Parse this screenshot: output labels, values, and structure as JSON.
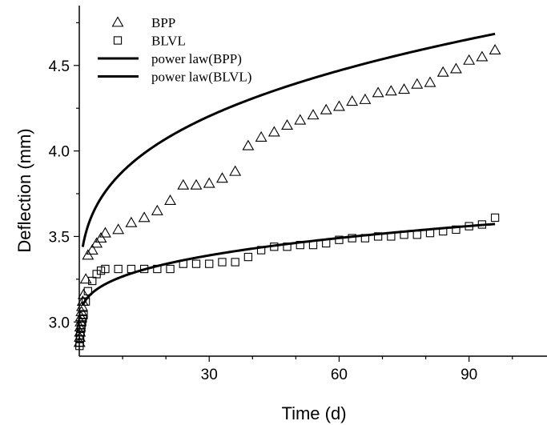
{
  "chart_data": {
    "type": "scatter",
    "title": "",
    "xlabel": "Time (d)",
    "ylabel": "Deflection (mm)",
    "xlim": [
      0,
      108
    ],
    "ylim": [
      2.8,
      4.85
    ],
    "xticks": [
      30,
      60,
      90
    ],
    "yticks": [
      3.0,
      3.5,
      4.0,
      4.5
    ],
    "x_tick_labels": [
      "30",
      "60",
      "90"
    ],
    "y_tick_labels": [
      "3.0",
      "3.5",
      "4.0",
      "4.5"
    ],
    "grid": false,
    "legend_position": "top-left",
    "series": [
      {
        "name": "BPP",
        "marker": "triangle",
        "points": [
          [
            0.05,
            2.88
          ],
          [
            0.1,
            2.91
          ],
          [
            0.15,
            2.94
          ],
          [
            0.2,
            2.97
          ],
          [
            0.3,
            3.0
          ],
          [
            0.4,
            3.03
          ],
          [
            0.5,
            3.06
          ],
          [
            0.65,
            3.09
          ],
          [
            0.8,
            3.12
          ],
          [
            1.0,
            3.16
          ],
          [
            1.5,
            3.25
          ],
          [
            2.0,
            3.39
          ],
          [
            3.0,
            3.42
          ],
          [
            4.0,
            3.46
          ],
          [
            5.0,
            3.49
          ],
          [
            6.0,
            3.52
          ],
          [
            9,
            3.54
          ],
          [
            12,
            3.58
          ],
          [
            15,
            3.61
          ],
          [
            18,
            3.65
          ],
          [
            21,
            3.71
          ],
          [
            24,
            3.8
          ],
          [
            27,
            3.8
          ],
          [
            30,
            3.81
          ],
          [
            33,
            3.84
          ],
          [
            36,
            3.88
          ],
          [
            39,
            4.03
          ],
          [
            42,
            4.08
          ],
          [
            45,
            4.11
          ],
          [
            48,
            4.15
          ],
          [
            51,
            4.18
          ],
          [
            54,
            4.21
          ],
          [
            57,
            4.24
          ],
          [
            60,
            4.26
          ],
          [
            63,
            4.29
          ],
          [
            66,
            4.3
          ],
          [
            69,
            4.34
          ],
          [
            72,
            4.35
          ],
          [
            75,
            4.36
          ],
          [
            78,
            4.39
          ],
          [
            81,
            4.4
          ],
          [
            84,
            4.46
          ],
          [
            87,
            4.48
          ],
          [
            90,
            4.53
          ],
          [
            93,
            4.55
          ],
          [
            96,
            4.59
          ]
        ]
      },
      {
        "name": "BLVL",
        "marker": "square",
        "points": [
          [
            0.05,
            2.86
          ],
          [
            0.1,
            2.88
          ],
          [
            0.15,
            2.9
          ],
          [
            0.2,
            2.92
          ],
          [
            0.3,
            2.94
          ],
          [
            0.4,
            2.96
          ],
          [
            0.5,
            2.98
          ],
          [
            0.65,
            3.0
          ],
          [
            0.8,
            3.02
          ],
          [
            1.0,
            3.04
          ],
          [
            1.5,
            3.12
          ],
          [
            2.0,
            3.18
          ],
          [
            3.0,
            3.24
          ],
          [
            4.0,
            3.28
          ],
          [
            5.0,
            3.3
          ],
          [
            6.0,
            3.31
          ],
          [
            9,
            3.31
          ],
          [
            12,
            3.31
          ],
          [
            15,
            3.31
          ],
          [
            18,
            3.31
          ],
          [
            21,
            3.31
          ],
          [
            24,
            3.34
          ],
          [
            27,
            3.34
          ],
          [
            30,
            3.34
          ],
          [
            33,
            3.35
          ],
          [
            36,
            3.35
          ],
          [
            39,
            3.38
          ],
          [
            42,
            3.42
          ],
          [
            45,
            3.44
          ],
          [
            48,
            3.44
          ],
          [
            51,
            3.45
          ],
          [
            54,
            3.45
          ],
          [
            57,
            3.46
          ],
          [
            60,
            3.48
          ],
          [
            63,
            3.49
          ],
          [
            66,
            3.49
          ],
          [
            69,
            3.5
          ],
          [
            72,
            3.5
          ],
          [
            75,
            3.51
          ],
          [
            78,
            3.51
          ],
          [
            81,
            3.52
          ],
          [
            84,
            3.53
          ],
          [
            87,
            3.54
          ],
          [
            90,
            3.56
          ],
          [
            93,
            3.57
          ],
          [
            96,
            3.61
          ]
        ]
      }
    ],
    "fit_lines": [
      {
        "name": "power law(BPP)",
        "a": 3.05,
        "b": 0.4157,
        "c": 0.3,
        "x_range": [
          0.8,
          96
        ]
      },
      {
        "name": "power law(BLVL)",
        "a": 2.95,
        "b": 0.1584,
        "c": 0.3,
        "x_range": [
          0.8,
          96
        ]
      }
    ],
    "colors": {
      "axis": "#000000",
      "markers": "#000000",
      "fit_line": "#000000"
    }
  }
}
